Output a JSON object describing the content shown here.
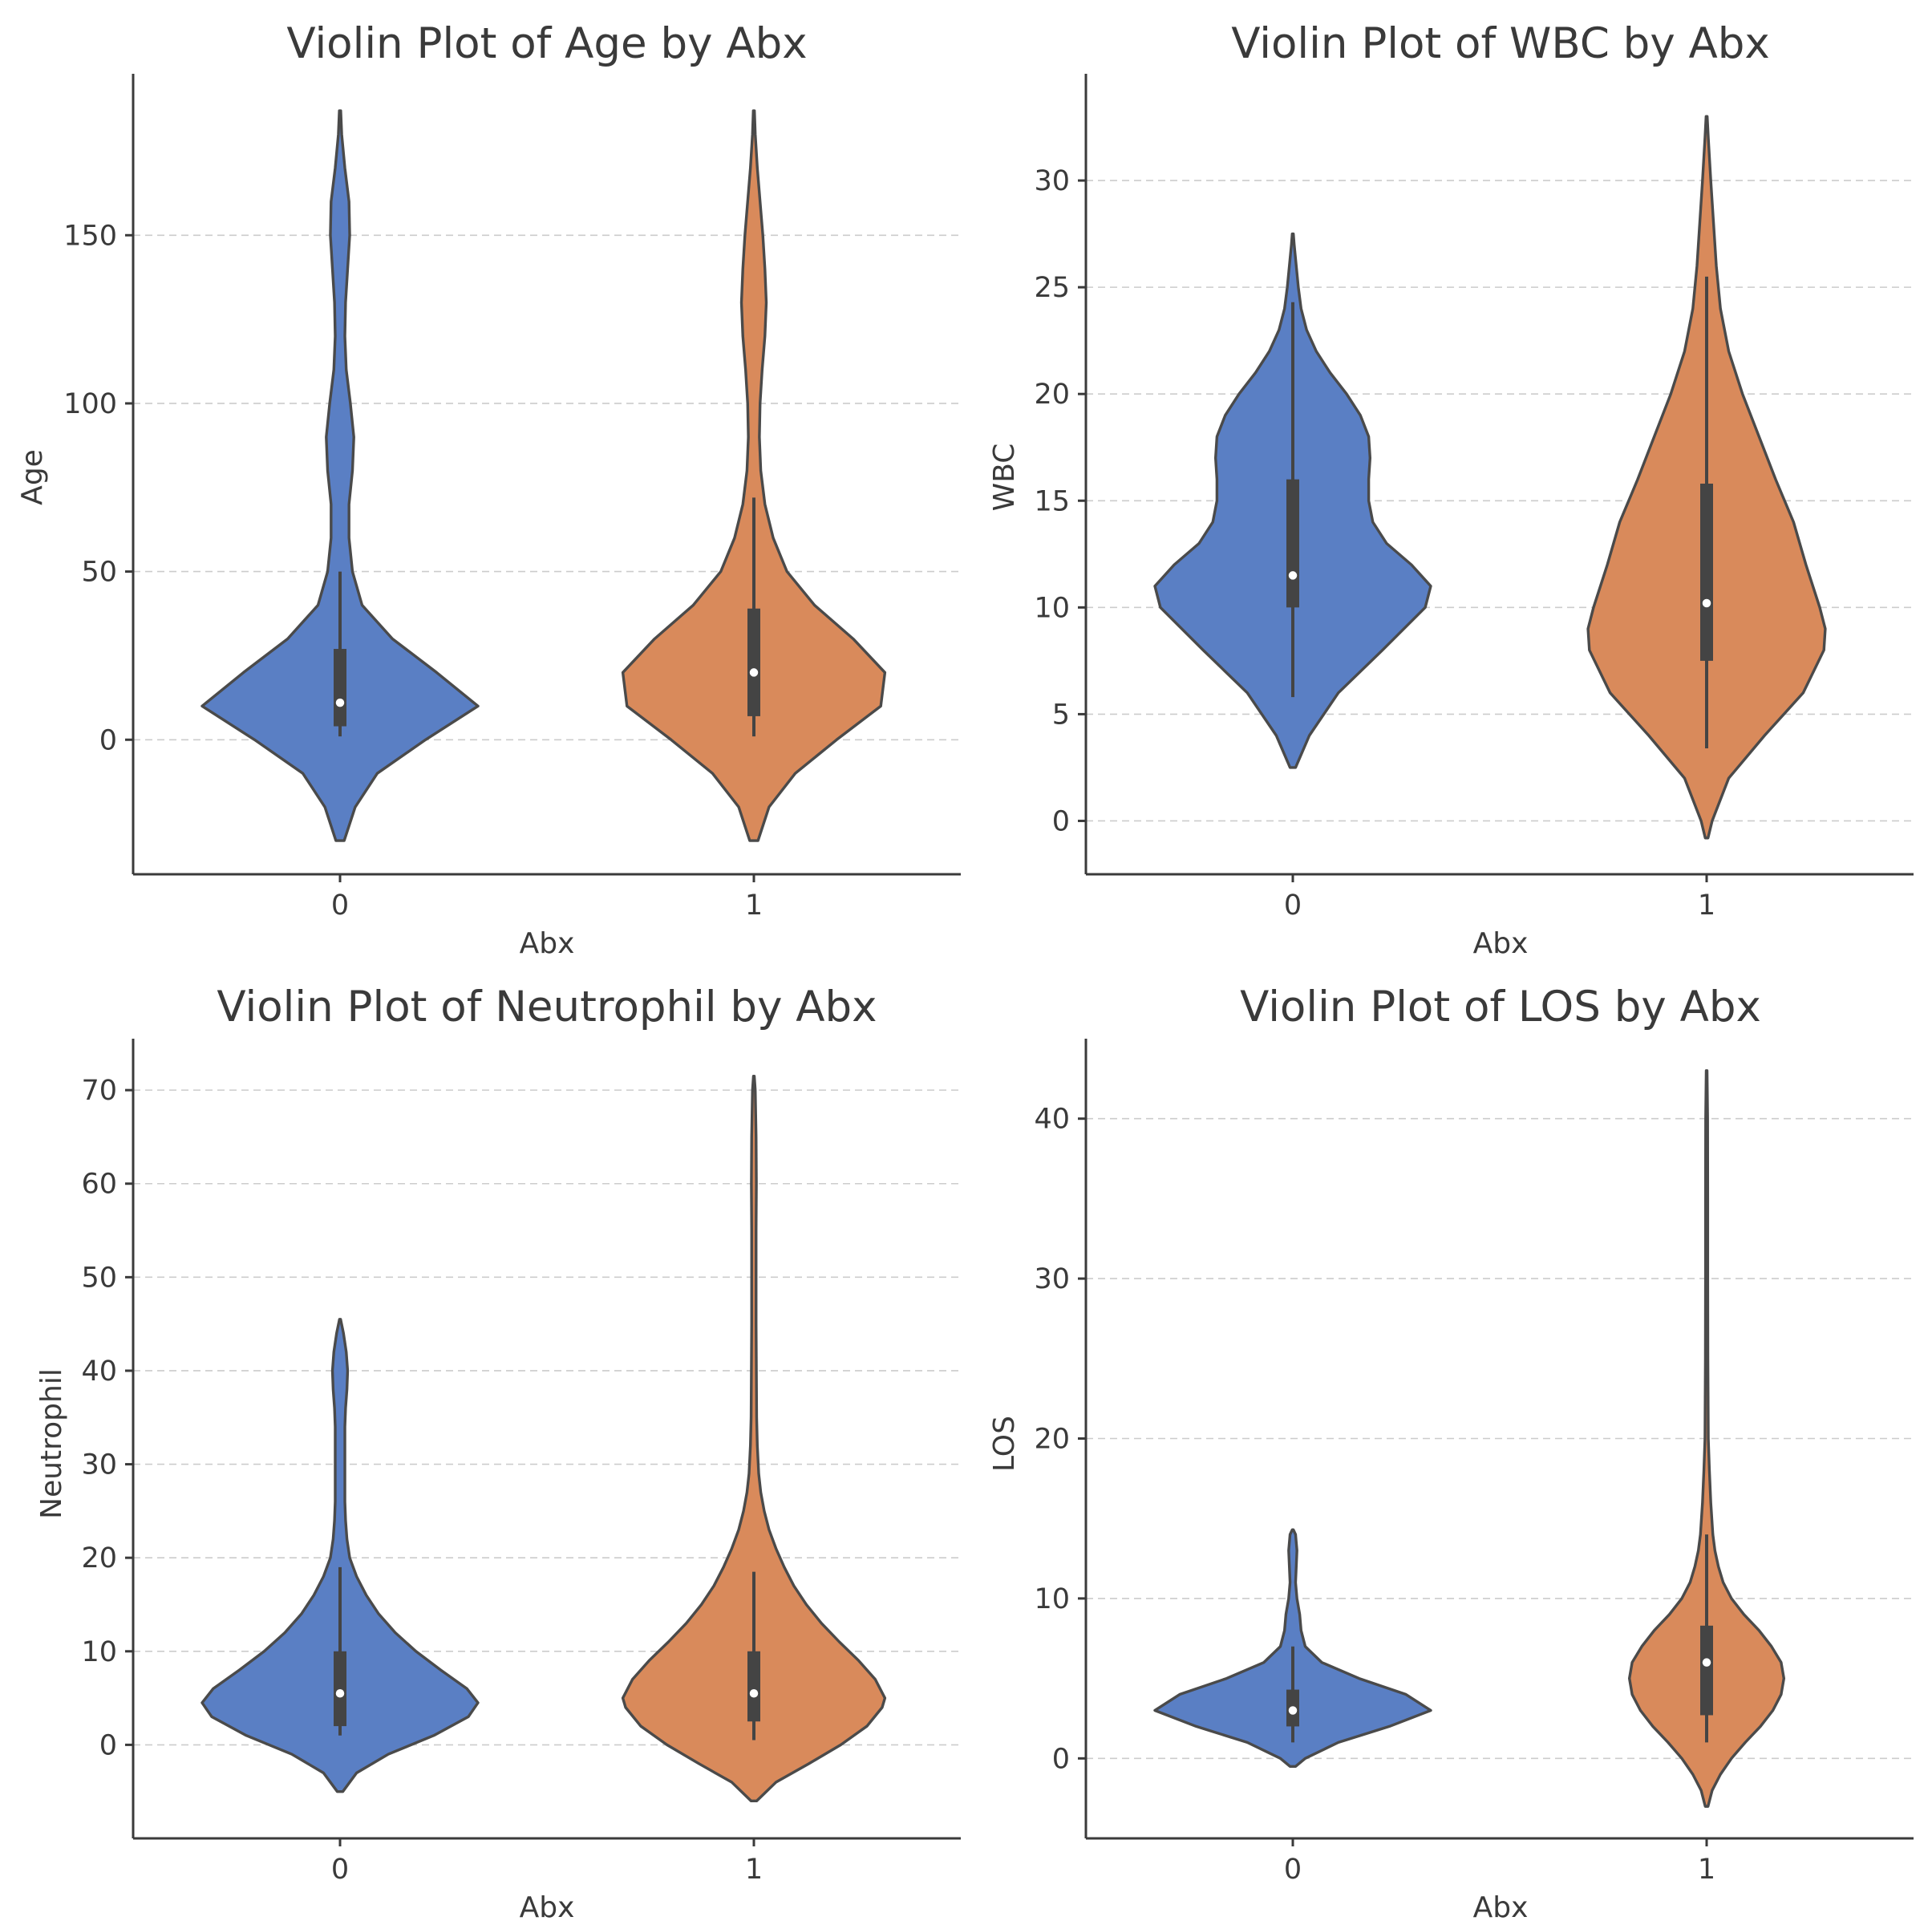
{
  "colors": {
    "group0": "#5a7fc4",
    "group1": "#d98a5b"
  },
  "chart_data": [
    {
      "type": "violin",
      "title": "Violin Plot of Age by Abx",
      "xlabel": "Abx",
      "ylabel": "Age",
      "categories": [
        "0",
        "1"
      ],
      "yticks": [
        0,
        50,
        100,
        150
      ],
      "ylim": [
        -40,
        198
      ],
      "grid": true,
      "groups": [
        {
          "name": "0",
          "box": {
            "q1": 4,
            "median": 11,
            "q3": 27,
            "whisker_low": 1,
            "whisker_high": 50
          },
          "range": [
            -30,
            187
          ],
          "density": [
            [
              -30,
              0.03
            ],
            [
              -20,
              0.11
            ],
            [
              -10,
              0.27
            ],
            [
              0,
              0.62
            ],
            [
              10,
              1.0
            ],
            [
              20,
              0.7
            ],
            [
              30,
              0.38
            ],
            [
              40,
              0.16
            ],
            [
              50,
              0.09
            ],
            [
              60,
              0.065
            ],
            [
              70,
              0.065
            ],
            [
              80,
              0.09
            ],
            [
              90,
              0.1
            ],
            [
              100,
              0.075
            ],
            [
              110,
              0.045
            ],
            [
              120,
              0.035
            ],
            [
              130,
              0.04
            ],
            [
              140,
              0.055
            ],
            [
              150,
              0.07
            ],
            [
              160,
              0.065
            ],
            [
              170,
              0.035
            ],
            [
              180,
              0.012
            ],
            [
              187,
              0.005
            ]
          ]
        },
        {
          "name": "1",
          "box": {
            "q1": 7,
            "median": 20,
            "q3": 39,
            "whisker_low": 1,
            "whisker_high": 72
          },
          "range": [
            -30,
            187
          ],
          "density": [
            [
              -30,
              0.03
            ],
            [
              -20,
              0.11
            ],
            [
              -10,
              0.3
            ],
            [
              0,
              0.6
            ],
            [
              10,
              0.92
            ],
            [
              20,
              0.95
            ],
            [
              30,
              0.72
            ],
            [
              40,
              0.44
            ],
            [
              50,
              0.24
            ],
            [
              60,
              0.14
            ],
            [
              70,
              0.08
            ],
            [
              80,
              0.05
            ],
            [
              90,
              0.04
            ],
            [
              100,
              0.045
            ],
            [
              110,
              0.06
            ],
            [
              120,
              0.08
            ],
            [
              130,
              0.09
            ],
            [
              140,
              0.08
            ],
            [
              150,
              0.065
            ],
            [
              160,
              0.045
            ],
            [
              170,
              0.025
            ],
            [
              180,
              0.01
            ],
            [
              187,
              0.004
            ]
          ]
        }
      ]
    },
    {
      "type": "violin",
      "title": "Violin Plot of WBC by Abx",
      "xlabel": "Abx",
      "ylabel": "WBC",
      "categories": [
        "0",
        "1"
      ],
      "yticks": [
        0,
        5,
        10,
        15,
        20,
        25,
        30
      ],
      "ylim": [
        -2.5,
        35
      ],
      "grid": true,
      "groups": [
        {
          "name": "0",
          "box": {
            "q1": 10,
            "median": 11.5,
            "q3": 16,
            "whisker_low": 5.8,
            "whisker_high": 24.3
          },
          "range": [
            2.5,
            27.5
          ],
          "density": [
            [
              2.5,
              0.02
            ],
            [
              4,
              0.12
            ],
            [
              6,
              0.33
            ],
            [
              8,
              0.65
            ],
            [
              10,
              0.96
            ],
            [
              11,
              1.0
            ],
            [
              12,
              0.86
            ],
            [
              13,
              0.68
            ],
            [
              14,
              0.58
            ],
            [
              15,
              0.55
            ],
            [
              16,
              0.55
            ],
            [
              17,
              0.56
            ],
            [
              18,
              0.55
            ],
            [
              19,
              0.49
            ],
            [
              20,
              0.39
            ],
            [
              21,
              0.27
            ],
            [
              22,
              0.17
            ],
            [
              23,
              0.1
            ],
            [
              24,
              0.06
            ],
            [
              25,
              0.04
            ],
            [
              26,
              0.025
            ],
            [
              27,
              0.01
            ],
            [
              27.5,
              0.004
            ]
          ]
        },
        {
          "name": "1",
          "box": {
            "q1": 7.5,
            "median": 10.2,
            "q3": 15.8,
            "whisker_low": 3.4,
            "whisker_high": 25.5
          },
          "range": [
            -0.8,
            33
          ],
          "density": [
            [
              -0.8,
              0.01
            ],
            [
              0,
              0.04
            ],
            [
              2,
              0.16
            ],
            [
              4,
              0.42
            ],
            [
              6,
              0.7
            ],
            [
              8,
              0.85
            ],
            [
              9,
              0.86
            ],
            [
              10,
              0.82
            ],
            [
              12,
              0.72
            ],
            [
              14,
              0.63
            ],
            [
              16,
              0.5
            ],
            [
              18,
              0.38
            ],
            [
              20,
              0.26
            ],
            [
              22,
              0.16
            ],
            [
              24,
              0.1
            ],
            [
              26,
              0.07
            ],
            [
              28,
              0.05
            ],
            [
              30,
              0.03
            ],
            [
              32,
              0.012
            ],
            [
              33,
              0.004
            ]
          ]
        }
      ]
    },
    {
      "type": "violin",
      "title": "Violin Plot of Neutrophil  by Abx",
      "xlabel": "Abx",
      "ylabel": "Neutrophil",
      "categories": [
        "0",
        "1"
      ],
      "yticks": [
        0,
        10,
        20,
        30,
        40,
        50,
        60,
        70
      ],
      "ylim": [
        -10,
        75.5
      ],
      "grid": true,
      "groups": [
        {
          "name": "0",
          "box": {
            "q1": 2,
            "median": 5.5,
            "q3": 10,
            "whisker_low": 1,
            "whisker_high": 19
          },
          "range": [
            -5,
            45.5
          ],
          "density": [
            [
              -5,
              0.02
            ],
            [
              -3,
              0.12
            ],
            [
              -1,
              0.35
            ],
            [
              1,
              0.68
            ],
            [
              3,
              0.93
            ],
            [
              4.5,
              1.0
            ],
            [
              6,
              0.92
            ],
            [
              8,
              0.73
            ],
            [
              10,
              0.55
            ],
            [
              12,
              0.4
            ],
            [
              14,
              0.28
            ],
            [
              16,
              0.19
            ],
            [
              18,
              0.12
            ],
            [
              20,
              0.07
            ],
            [
              22,
              0.05
            ],
            [
              24,
              0.04
            ],
            [
              26,
              0.035
            ],
            [
              28,
              0.035
            ],
            [
              30,
              0.035
            ],
            [
              32,
              0.035
            ],
            [
              34,
              0.035
            ],
            [
              36,
              0.04
            ],
            [
              38,
              0.05
            ],
            [
              40,
              0.055
            ],
            [
              42,
              0.045
            ],
            [
              44,
              0.025
            ],
            [
              45.5,
              0.004
            ]
          ]
        },
        {
          "name": "1",
          "box": {
            "q1": 2.5,
            "median": 5.5,
            "q3": 10,
            "whisker_low": 0.5,
            "whisker_high": 18.5
          },
          "range": [
            -6,
            71.5
          ],
          "density": [
            [
              -6,
              0.02
            ],
            [
              -4,
              0.16
            ],
            [
              -2,
              0.4
            ],
            [
              0,
              0.63
            ],
            [
              2,
              0.82
            ],
            [
              4,
              0.93
            ],
            [
              5,
              0.95
            ],
            [
              7,
              0.88
            ],
            [
              9,
              0.76
            ],
            [
              11,
              0.62
            ],
            [
              13,
              0.49
            ],
            [
              15,
              0.38
            ],
            [
              17,
              0.29
            ],
            [
              19,
              0.22
            ],
            [
              21,
              0.16
            ],
            [
              23,
              0.11
            ],
            [
              25,
              0.075
            ],
            [
              27,
              0.05
            ],
            [
              29,
              0.035
            ],
            [
              32,
              0.025
            ],
            [
              35,
              0.02
            ],
            [
              40,
              0.018
            ],
            [
              45,
              0.016
            ],
            [
              50,
              0.016
            ],
            [
              55,
              0.016
            ],
            [
              60,
              0.018
            ],
            [
              65,
              0.016
            ],
            [
              70,
              0.01
            ],
            [
              71.5,
              0.003
            ]
          ]
        }
      ]
    },
    {
      "type": "violin",
      "title": "Violin Plot of LOS by Abx",
      "xlabel": "Abx",
      "ylabel": "LOS",
      "categories": [
        "0",
        "1"
      ],
      "yticks": [
        0,
        10,
        20,
        30,
        40
      ],
      "ylim": [
        -5,
        45
      ],
      "grid": true,
      "groups": [
        {
          "name": "0",
          "box": {
            "q1": 2,
            "median": 3,
            "q3": 4.3,
            "whisker_low": 1,
            "whisker_high": 7
          },
          "range": [
            -0.5,
            14.3
          ],
          "density": [
            [
              -0.5,
              0.02
            ],
            [
              0,
              0.09
            ],
            [
              1,
              0.33
            ],
            [
              2,
              0.7
            ],
            [
              3,
              1.0
            ],
            [
              4,
              0.82
            ],
            [
              5,
              0.48
            ],
            [
              6,
              0.21
            ],
            [
              7,
              0.09
            ],
            [
              8,
              0.06
            ],
            [
              9,
              0.05
            ],
            [
              10,
              0.03
            ],
            [
              11,
              0.02
            ],
            [
              12,
              0.025
            ],
            [
              13,
              0.03
            ],
            [
              14,
              0.02
            ],
            [
              14.3,
              0.004
            ]
          ]
        },
        {
          "name": "1",
          "box": {
            "q1": 2.7,
            "median": 6,
            "q3": 8.3,
            "whisker_low": 1,
            "whisker_high": 14
          },
          "range": [
            -3,
            43
          ],
          "density": [
            [
              -3,
              0.01
            ],
            [
              -2,
              0.04
            ],
            [
              -1,
              0.1
            ],
            [
              0,
              0.18
            ],
            [
              1,
              0.28
            ],
            [
              2,
              0.39
            ],
            [
              3,
              0.48
            ],
            [
              4,
              0.54
            ],
            [
              5,
              0.56
            ],
            [
              6,
              0.54
            ],
            [
              7,
              0.47
            ],
            [
              8,
              0.38
            ],
            [
              9,
              0.27
            ],
            [
              10,
              0.18
            ],
            [
              11,
              0.12
            ],
            [
              12,
              0.085
            ],
            [
              13,
              0.06
            ],
            [
              14,
              0.045
            ],
            [
              16,
              0.03
            ],
            [
              18,
              0.02
            ],
            [
              20,
              0.012
            ],
            [
              25,
              0.009
            ],
            [
              30,
              0.008
            ],
            [
              35,
              0.008
            ],
            [
              40,
              0.007
            ],
            [
              43,
              0.003
            ]
          ]
        }
      ]
    }
  ]
}
